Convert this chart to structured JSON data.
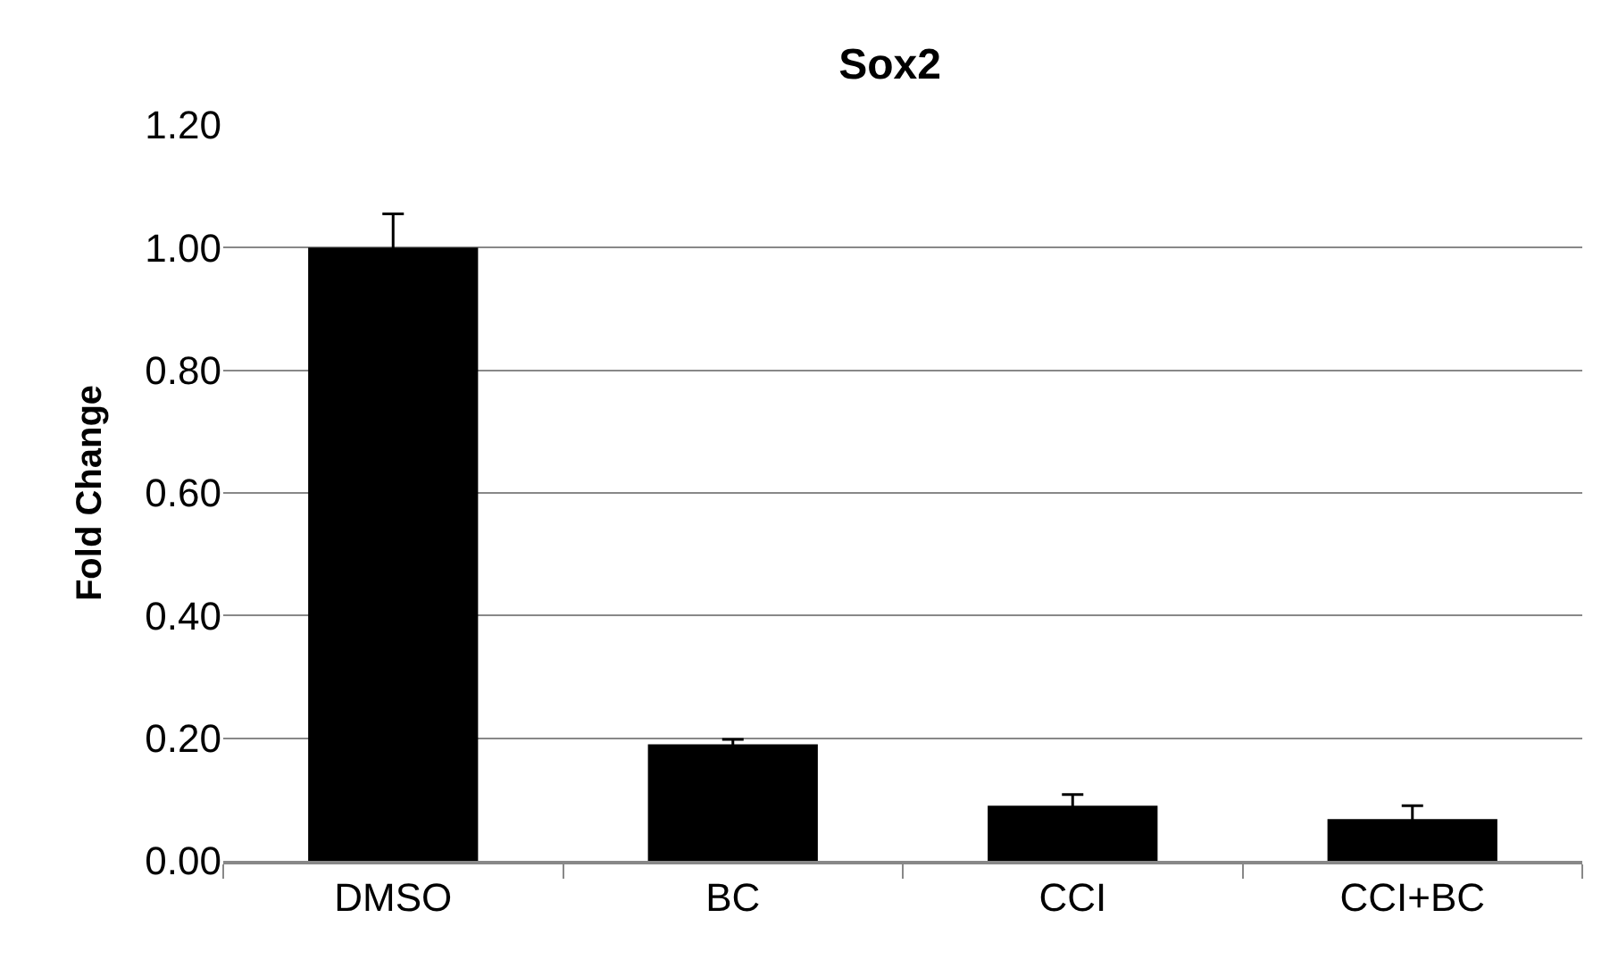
{
  "chart_data": {
    "type": "bar",
    "title": "Sox2",
    "ylabel": "Fold Change",
    "categories": [
      "DMSO",
      "BC",
      "CCI",
      "CCI+BC"
    ],
    "values": [
      1.0,
      0.19,
      0.09,
      0.068
    ],
    "errors": [
      0.055,
      0.008,
      0.018,
      0.022
    ],
    "color": "#000000",
    "ylim": [
      0,
      1.2
    ],
    "yticks": [
      {
        "value": 0,
        "label": "0.00"
      },
      {
        "value": 0.2,
        "label": "0.20"
      },
      {
        "value": 0.4,
        "label": "0.40"
      },
      {
        "value": 0.6,
        "label": "0.60"
      },
      {
        "value": 0.8,
        "label": "0.80"
      },
      {
        "value": 1.0,
        "label": "1.00"
      },
      {
        "value": 1.2,
        "label": "1.20"
      }
    ],
    "grid": "y"
  }
}
